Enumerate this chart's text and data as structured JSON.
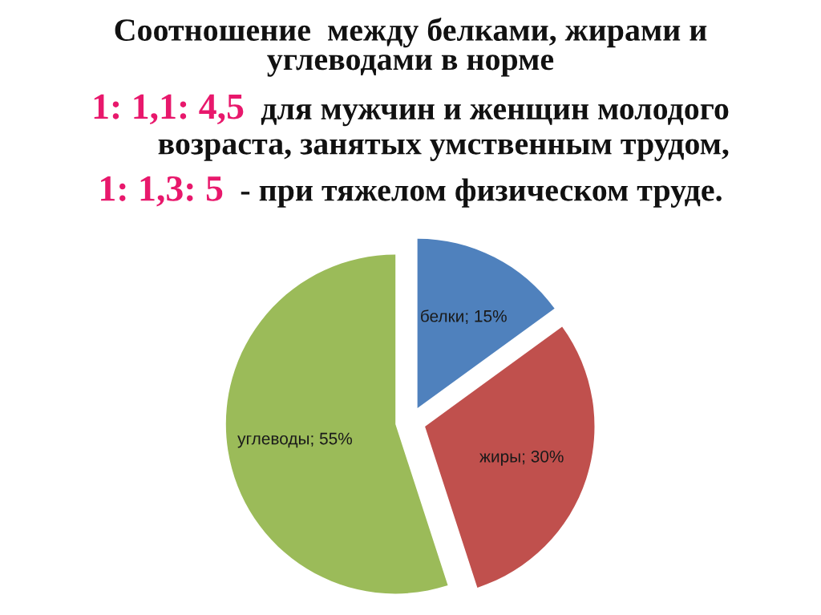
{
  "chart_data": {
    "type": "pie",
    "title": "Соотношение  между белками, жирами и\nуглеводами в норме",
    "annotations": [
      "1: 1,1: 4,5",
      "для мужчин и женщин молодого\nвозраста, занятых умственным трудом,",
      "1: 1,3: 5",
      "- при тяжелом физическом труде."
    ],
    "categories": [
      "белки",
      "жиры",
      "углеводы"
    ],
    "values": [
      15,
      30,
      55
    ],
    "colors": [
      "#4f81bd",
      "#c0504d",
      "#9bbb59"
    ],
    "value_labels": [
      "15%",
      "30%",
      "55%"
    ]
  }
}
